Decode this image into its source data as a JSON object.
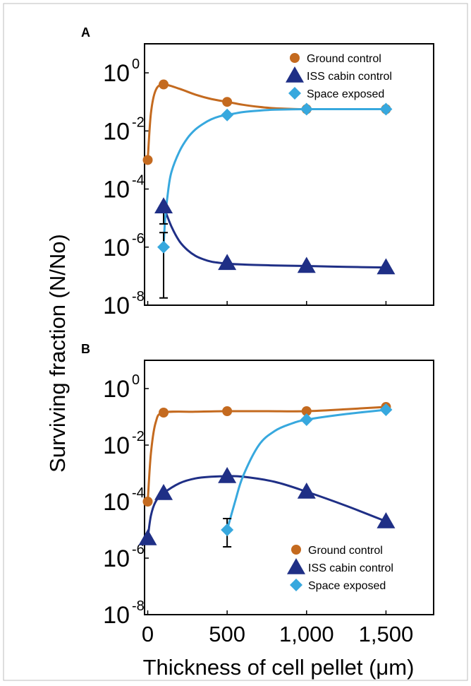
{
  "figure": {
    "ylabel": "Surviving fraction (N/No)",
    "xlabel": "Thickness of cell pellet (μm)",
    "x_tick_labels": [
      "0",
      "500",
      "1,000",
      "1,500"
    ]
  },
  "colors": {
    "ground": "#c46a1f",
    "iss": "#1f2f86",
    "space": "#37a8de",
    "errorbar": "#000000"
  },
  "chart_data": [
    {
      "panel_label": "A",
      "type": "line",
      "y_scale": "log",
      "xlim": [
        -20,
        1800
      ],
      "ylim_exp": [
        -8,
        1
      ],
      "y_tick_base": "10",
      "y_tick_exps": [
        "0",
        "-2",
        "-4",
        "-6",
        "-8"
      ],
      "legend_position": "top-right",
      "series": [
        {
          "name": "Ground control",
          "marker": "circle",
          "x": [
            0,
            100,
            500,
            1000,
            1500
          ],
          "log10_y": [
            -3.0,
            -0.4,
            -1.0,
            -1.25,
            -1.25
          ],
          "curve_x": [
            0,
            20,
            50,
            100,
            200,
            300,
            400,
            500,
            600,
            700,
            800,
            900,
            1000,
            1250,
            1500
          ],
          "curve_log10_y": [
            -3.0,
            -1.4,
            -0.6,
            -0.4,
            -0.55,
            -0.75,
            -0.9,
            -1.0,
            -1.1,
            -1.17,
            -1.22,
            -1.24,
            -1.25,
            -1.25,
            -1.25
          ]
        },
        {
          "name": "ISS cabin control",
          "marker": "triangle",
          "x": [
            100,
            500,
            1000,
            1500
          ],
          "log10_y": [
            -4.6,
            -6.55,
            -6.65,
            -6.7
          ],
          "err_low_log10": [
            -5.2,
            null,
            -6.8,
            -6.8
          ],
          "err_high_log10": [
            -4.6,
            null,
            -6.65,
            -6.7
          ],
          "curve_x": [
            100,
            150,
            200,
            250,
            300,
            350,
            400,
            450,
            500,
            600,
            800,
            1000,
            1250,
            1500
          ],
          "curve_log10_y": [
            -4.6,
            -5.3,
            -5.8,
            -6.1,
            -6.3,
            -6.42,
            -6.5,
            -6.54,
            -6.57,
            -6.6,
            -6.63,
            -6.65,
            -6.68,
            -6.7
          ]
        },
        {
          "name": "Space exposed",
          "marker": "diamond",
          "x": [
            100,
            500,
            1000,
            1500
          ],
          "log10_y": [
            -6.0,
            -1.45,
            -1.25,
            -1.25
          ],
          "err_low_log10": [
            -7.75,
            null,
            null,
            null
          ],
          "err_high_log10": [
            -5.5,
            null,
            null,
            null
          ],
          "curve_x": [
            100,
            110,
            130,
            150,
            200,
            250,
            300,
            350,
            400,
            450,
            500,
            600,
            700,
            800,
            1000,
            1250,
            1500
          ],
          "curve_log10_y": [
            -6.0,
            -5.0,
            -4.0,
            -3.4,
            -2.7,
            -2.25,
            -1.95,
            -1.75,
            -1.6,
            -1.5,
            -1.45,
            -1.35,
            -1.3,
            -1.27,
            -1.25,
            -1.25,
            -1.25
          ]
        }
      ]
    },
    {
      "panel_label": "B",
      "type": "line",
      "y_scale": "log",
      "xlim": [
        -20,
        1800
      ],
      "ylim_exp": [
        -8,
        1
      ],
      "y_tick_base": "10",
      "y_tick_exps": [
        "0",
        "-2",
        "-4",
        "-6",
        "-8"
      ],
      "legend_position": "bottom-right",
      "series": [
        {
          "name": "Ground control",
          "marker": "circle",
          "x": [
            0,
            100,
            500,
            1000,
            1500
          ],
          "log10_y": [
            -4.0,
            -0.85,
            -0.8,
            -0.8,
            -0.65
          ],
          "curve_x": [
            0,
            20,
            50,
            100,
            300,
            500,
            750,
            1000,
            1250,
            1500
          ],
          "curve_log10_y": [
            -4.0,
            -2.3,
            -1.2,
            -0.85,
            -0.82,
            -0.8,
            -0.8,
            -0.8,
            -0.73,
            -0.65
          ]
        },
        {
          "name": "ISS cabin control",
          "marker": "triangle",
          "x": [
            0,
            100,
            500,
            1000,
            1500
          ],
          "log10_y": [
            -5.3,
            -3.7,
            -3.1,
            -3.65,
            -4.7
          ],
          "curve_x": [
            0,
            20,
            50,
            100,
            200,
            300,
            400,
            500,
            600,
            800,
            1000,
            1250,
            1500
          ],
          "curve_log10_y": [
            -5.3,
            -4.5,
            -4.0,
            -3.7,
            -3.35,
            -3.18,
            -3.12,
            -3.1,
            -3.12,
            -3.3,
            -3.65,
            -4.15,
            -4.7
          ]
        },
        {
          "name": "Space exposed",
          "marker": "diamond",
          "x": [
            500,
            1000,
            1500
          ],
          "log10_y": [
            -5.0,
            -1.1,
            -0.75
          ],
          "err_low_log10": [
            -5.6,
            null,
            null
          ],
          "err_high_log10": [
            -4.6,
            null,
            null
          ],
          "curve_x": [
            500,
            550,
            600,
            700,
            800,
            900,
            1000,
            1250,
            1500
          ],
          "curve_log10_y": [
            -5.0,
            -4.0,
            -3.1,
            -2.0,
            -1.5,
            -1.25,
            -1.1,
            -0.9,
            -0.75
          ]
        }
      ]
    }
  ]
}
